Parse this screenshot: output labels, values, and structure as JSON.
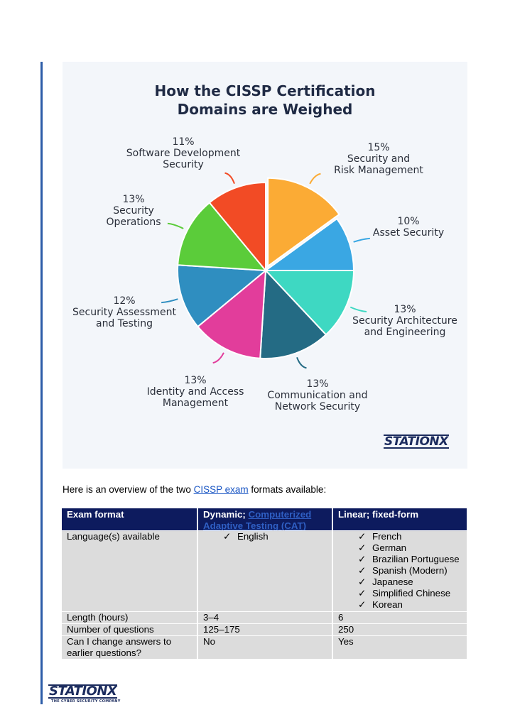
{
  "chart_data": {
    "type": "pie",
    "title": "How the CISSP Certification Domains are Weighed",
    "title_lines": [
      "How the CISSP Certification",
      "Domains are Weighed"
    ],
    "slices": [
      {
        "label": "Security and Risk Management",
        "lines": [
          "15%",
          "Security and",
          "Risk Management"
        ],
        "value": 15,
        "color": "#fbab35",
        "exploded": true
      },
      {
        "label": "Asset Security",
        "lines": [
          "10%",
          "Asset Security"
        ],
        "value": 10,
        "color": "#3aa7e3"
      },
      {
        "label": "Security Architecture and Engineering",
        "lines": [
          "13%",
          "Security Architecture",
          "and Engineering"
        ],
        "value": 13,
        "color": "#3ed8c2"
      },
      {
        "label": "Communication and Network Security",
        "lines": [
          "13%",
          "Communication and",
          "Network Security"
        ],
        "value": 13,
        "color": "#246b84"
      },
      {
        "label": "Identity and Access Management",
        "lines": [
          "13%",
          "Identity and Access",
          "Management"
        ],
        "value": 13,
        "color": "#e23d9b"
      },
      {
        "label": "Security Assessment and Testing",
        "lines": [
          "12%",
          "Security Assessment",
          "and Testing"
        ],
        "value": 12,
        "color": "#2f8ec0"
      },
      {
        "label": "Security Operations",
        "lines": [
          "13%",
          "Security",
          "Operations"
        ],
        "value": 13,
        "color": "#5bcc3a"
      },
      {
        "label": "Software Development Security",
        "lines": [
          "11%",
          "Software Development",
          "Security"
        ],
        "value": 11,
        "color": "#f24b25"
      }
    ]
  },
  "logo": {
    "chart_logo": "STATIONX",
    "footer_logo": "STATIONX",
    "tagline": "THE CYBER SECURITY COMPANY"
  },
  "intro": {
    "before": "Here is an overview of the two ",
    "link": "CISSP exam",
    "after": " formats available:"
  },
  "table": {
    "headers": {
      "c1": "Exam format",
      "c2_prefix": "Dynamic; ",
      "c2_link": "Computerized Adaptive Testing (CAT)",
      "c3": "Linear; fixed-form"
    },
    "languages_label": "Language(s) available",
    "check": "✓",
    "dynamic_languages": [
      "English"
    ],
    "linear_languages": [
      "French",
      "German",
      "Brazilian Portuguese",
      "Spanish (Modern)",
      "Japanese",
      "Simplified Chinese",
      "Korean"
    ],
    "rows": [
      {
        "label": "Length (hours)",
        "dynamic": "3–4",
        "linear": "6"
      },
      {
        "label": "Number of questions",
        "dynamic": "125–175",
        "linear": "250"
      },
      {
        "label": "Can I change answers to earlier questions?",
        "dynamic": "No",
        "linear": "Yes"
      }
    ]
  }
}
